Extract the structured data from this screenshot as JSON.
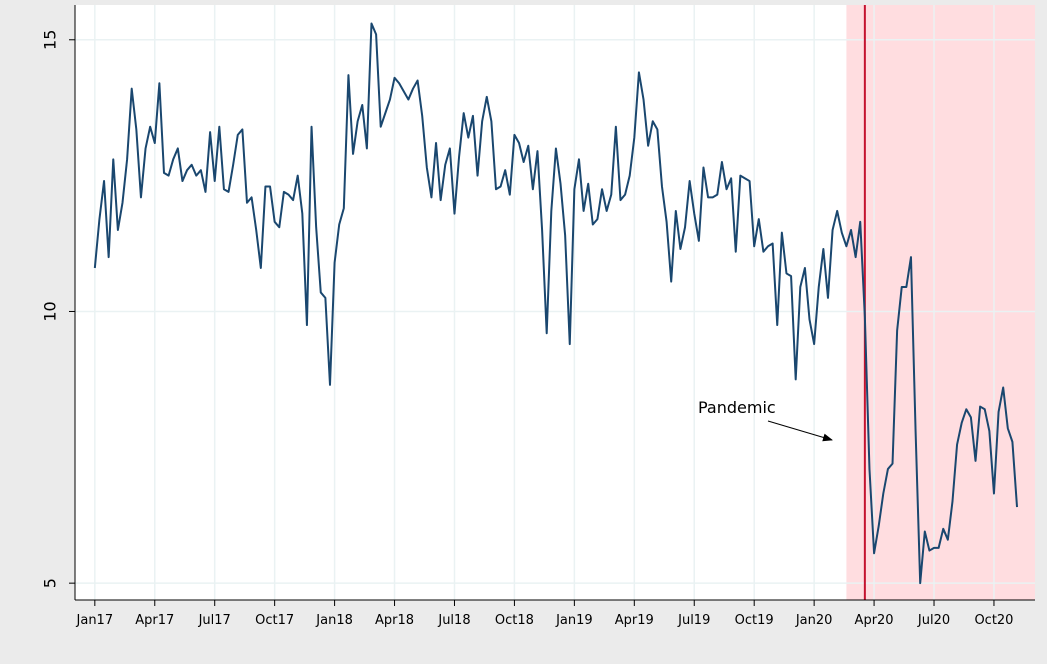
{
  "chart_data": {
    "type": "line",
    "annotation": "Pandemic",
    "x": [
      0,
      1,
      2,
      3,
      4,
      5,
      6,
      7,
      8,
      9,
      10,
      11,
      12,
      13,
      14,
      15,
      16,
      17,
      18,
      19,
      20,
      21,
      22,
      23,
      24,
      25,
      26,
      27,
      28,
      29,
      30,
      31,
      32,
      33,
      34,
      35,
      36,
      37,
      38,
      39,
      40,
      41,
      42,
      43,
      44,
      45,
      46,
      47,
      48,
      49,
      50,
      51,
      52,
      53,
      54,
      55,
      56,
      57,
      58,
      59,
      60,
      61,
      62,
      63,
      64,
      65,
      66,
      67,
      68,
      69,
      70,
      71,
      72,
      73,
      74,
      75,
      76,
      77,
      78,
      79,
      80,
      81,
      82,
      83,
      84,
      85,
      86,
      87,
      88,
      89,
      90,
      91,
      92,
      93,
      94,
      95,
      96,
      97,
      98,
      99,
      100,
      101,
      102,
      103,
      104,
      105,
      106,
      107,
      108,
      109,
      110,
      111,
      112,
      113,
      114,
      115,
      116,
      117,
      118,
      119,
      120,
      121,
      122,
      123,
      124,
      125,
      126,
      127,
      128,
      129,
      130,
      131,
      132,
      133,
      134,
      135,
      136,
      137,
      138,
      139,
      140,
      141,
      142,
      143,
      144,
      145,
      146,
      147,
      148,
      149,
      150,
      151,
      152,
      153,
      154,
      155,
      156,
      157,
      158,
      159,
      160,
      161,
      162,
      163,
      164,
      165,
      166,
      167,
      168,
      169,
      170,
      171,
      172,
      173,
      174,
      175,
      176,
      177,
      178,
      179,
      180,
      181,
      182,
      183,
      184,
      185,
      186,
      187,
      188,
      189,
      190,
      191,
      192,
      193,
      194,
      195,
      196,
      197,
      198,
      199,
      200
    ],
    "series": [
      {
        "color": "#1a476f",
        "values": [
          10.8,
          11.7,
          12.4,
          11.0,
          12.8,
          11.5,
          12.0,
          12.8,
          14.1,
          13.35,
          12.1,
          13.0,
          13.4,
          13.1,
          14.2,
          12.55,
          12.5,
          12.8,
          13.0,
          12.4,
          12.6,
          12.7,
          12.5,
          12.6,
          12.2,
          13.3,
          12.4,
          13.4,
          12.25,
          12.2,
          12.7,
          13.25,
          13.35,
          12.0,
          12.1,
          11.5,
          10.8,
          12.3,
          12.3,
          11.65,
          11.55,
          12.2,
          12.15,
          12.05,
          12.5,
          11.8,
          9.75,
          13.4,
          11.55,
          10.35,
          10.25,
          8.65,
          10.9,
          11.6,
          11.9,
          14.35,
          12.9,
          13.5,
          13.8,
          13.0,
          15.3,
          15.1,
          13.4,
          13.65,
          13.9,
          14.3,
          14.2,
          14.05,
          13.9,
          14.1,
          14.25,
          13.6,
          12.65,
          12.1,
          13.1,
          12.05,
          12.7,
          13.0,
          11.8,
          12.85,
          13.65,
          13.2,
          13.6,
          12.5,
          13.5,
          13.95,
          13.5,
          12.25,
          12.3,
          12.6,
          12.15,
          13.25,
          13.1,
          12.75,
          13.05,
          12.25,
          12.95,
          11.5,
          9.6,
          11.85,
          13.0,
          12.35,
          11.4,
          9.4,
          12.25,
          12.8,
          11.85,
          12.35,
          11.6,
          11.7,
          12.25,
          11.85,
          12.15,
          13.4,
          12.05,
          12.15,
          12.5,
          13.2,
          14.4,
          13.9,
          13.05,
          13.5,
          13.35,
          12.3,
          11.65,
          10.55,
          11.85,
          11.15,
          11.55,
          12.4,
          11.8,
          11.3,
          12.65,
          12.1,
          12.1,
          12.15,
          12.75,
          12.25,
          12.45,
          11.1,
          12.5,
          12.45,
          12.4,
          11.2,
          11.7,
          11.1,
          11.2,
          11.25,
          9.75,
          11.45,
          10.7,
          10.65,
          8.75,
          10.45,
          10.8,
          9.85,
          9.4,
          10.45,
          11.15,
          10.25,
          11.5,
          11.85,
          11.45,
          11.2,
          11.5,
          11.0,
          11.65,
          9.9,
          7.1,
          5.55,
          6.05,
          6.65,
          7.1,
          7.2,
          9.65,
          10.45,
          10.45,
          11.0,
          7.8,
          5.0,
          5.95,
          5.6,
          5.65,
          5.65,
          6.0,
          5.8,
          6.5,
          7.55,
          7.95,
          8.2,
          8.05,
          7.25,
          8.25,
          8.2,
          7.8,
          6.65,
          8.15,
          8.6,
          7.85,
          7.6,
          6.4
        ]
      }
    ],
    "shade_start": 163,
    "shade_color": "#ffdde0",
    "vline": 167,
    "vline_color": "#c4122f",
    "xlim": [
      -4.3,
      203.9
    ],
    "xticks": [
      {
        "value": 0,
        "label": "Jan17"
      },
      {
        "value": 13,
        "label": "Apr17"
      },
      {
        "value": 26,
        "label": "Jul17"
      },
      {
        "value": 39,
        "label": "Oct17"
      },
      {
        "value": 52,
        "label": "Jan18"
      },
      {
        "value": 65,
        "label": "Apr18"
      },
      {
        "value": 78,
        "label": "Jul18"
      },
      {
        "value": 91,
        "label": "Oct18"
      },
      {
        "value": 104,
        "label": "Jan19"
      },
      {
        "value": 117,
        "label": "Apr19"
      },
      {
        "value": 130,
        "label": "Jul19"
      },
      {
        "value": 143,
        "label": "Oct19"
      },
      {
        "value": 156,
        "label": "Jan20"
      },
      {
        "value": 169,
        "label": "Apr20"
      },
      {
        "value": 182,
        "label": "Jul20"
      },
      {
        "value": 195,
        "label": "Oct20"
      }
    ],
    "ylim": [
      4.69,
      15.64
    ],
    "yticks": [
      5,
      10,
      15
    ],
    "grid": true
  }
}
